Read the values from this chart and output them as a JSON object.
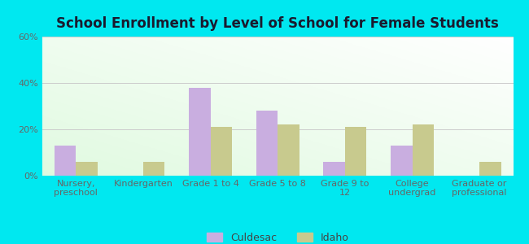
{
  "title": "School Enrollment by Level of School for Female Students",
  "categories": [
    "Nursery,\npreschool",
    "Kindergarten",
    "Grade 1 to 4",
    "Grade 5 to 8",
    "Grade 9 to\n12",
    "College\nundergrad",
    "Graduate or\nprofessional"
  ],
  "culdesac": [
    13,
    0,
    38,
    28,
    6,
    13,
    0
  ],
  "idaho": [
    6,
    6,
    21,
    22,
    21,
    22,
    6
  ],
  "culdesac_color": "#c9aee0",
  "idaho_color": "#c8ca8e",
  "background_outer": "#00e8f0",
  "ylim": [
    0,
    60
  ],
  "yticks": [
    0,
    20,
    40,
    60
  ],
  "ytick_labels": [
    "0%",
    "20%",
    "40%",
    "60%"
  ],
  "bar_width": 0.32,
  "legend_labels": [
    "Culdesac",
    "Idaho"
  ],
  "title_fontsize": 12,
  "tick_fontsize": 8,
  "legend_fontsize": 9
}
